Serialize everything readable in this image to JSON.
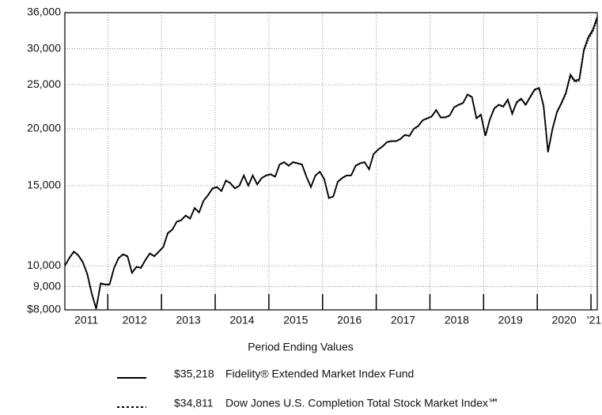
{
  "chart_data": {
    "type": "line",
    "log_y": true,
    "grid": true,
    "ylim": [
      8000,
      36000
    ],
    "yticks": [
      {
        "value": 8000,
        "label": "$8,000"
      },
      {
        "value": 9000,
        "label": "9,000"
      },
      {
        "value": 10000,
        "label": "10,000"
      },
      {
        "value": 15000,
        "label": "15,000"
      },
      {
        "value": 20000,
        "label": "20,000"
      },
      {
        "value": 25000,
        "label": "25,000"
      },
      {
        "value": 30000,
        "label": "30,000"
      },
      {
        "value": 36000,
        "label": "36,000"
      }
    ],
    "xlim": [
      2011.2,
      2021.117
    ],
    "xticks": [
      2012,
      2013,
      2014,
      2015,
      2016,
      2017,
      2018,
      2019,
      2020,
      2021
    ],
    "year_labels": [
      "2011",
      "2012",
      "2013",
      "2014",
      "2015",
      "2016",
      "2017",
      "2018",
      "2019",
      "2020",
      "'21"
    ],
    "legend_title": "Period Ending Values",
    "x": [
      2011.2,
      2011.283,
      2011.367,
      2011.45,
      2011.533,
      2011.617,
      2011.7,
      2011.783,
      2011.867,
      2011.95,
      2012.033,
      2012.117,
      2012.2,
      2012.283,
      2012.367,
      2012.45,
      2012.533,
      2012.617,
      2012.7,
      2012.783,
      2012.867,
      2012.95,
      2013.033,
      2013.117,
      2013.2,
      2013.283,
      2013.367,
      2013.45,
      2013.533,
      2013.617,
      2013.7,
      2013.783,
      2013.867,
      2013.95,
      2014.033,
      2014.117,
      2014.2,
      2014.283,
      2014.367,
      2014.45,
      2014.533,
      2014.617,
      2014.7,
      2014.783,
      2014.867,
      2014.95,
      2015.033,
      2015.117,
      2015.2,
      2015.283,
      2015.367,
      2015.45,
      2015.533,
      2015.617,
      2015.7,
      2015.783,
      2015.867,
      2015.95,
      2016.033,
      2016.117,
      2016.2,
      2016.283,
      2016.367,
      2016.45,
      2016.533,
      2016.617,
      2016.7,
      2016.783,
      2016.867,
      2016.95,
      2017.033,
      2017.117,
      2017.2,
      2017.283,
      2017.367,
      2017.45,
      2017.533,
      2017.617,
      2017.7,
      2017.783,
      2017.867,
      2017.95,
      2018.033,
      2018.117,
      2018.2,
      2018.283,
      2018.367,
      2018.45,
      2018.533,
      2018.617,
      2018.7,
      2018.783,
      2018.867,
      2018.95,
      2019.033,
      2019.117,
      2019.2,
      2019.283,
      2019.367,
      2019.45,
      2019.533,
      2019.617,
      2019.7,
      2019.783,
      2019.867,
      2019.95,
      2020.033,
      2020.117,
      2020.2,
      2020.283,
      2020.367,
      2020.45,
      2020.533,
      2020.617,
      2020.7,
      2020.783,
      2020.867,
      2020.95,
      2021.033,
      2021.117
    ],
    "series": [
      {
        "name": "Fidelity® Extended Market Index Fund",
        "end_label": "$35,218",
        "color": "#000000",
        "line_style": "solid",
        "values": [
          10000,
          10400,
          10750,
          10550,
          10200,
          9600,
          8700,
          8050,
          9150,
          9100,
          9100,
          9900,
          10400,
          10600,
          10500,
          9650,
          9950,
          9900,
          10300,
          10650,
          10500,
          10750,
          11000,
          11800,
          12000,
          12500,
          12600,
          12900,
          12700,
          13400,
          13100,
          13900,
          14300,
          14800,
          14900,
          14600,
          15400,
          15200,
          14800,
          15000,
          15800,
          15000,
          15800,
          15100,
          15600,
          15800,
          15900,
          15700,
          16700,
          16900,
          16600,
          16900,
          16800,
          16700,
          15700,
          14900,
          15800,
          16100,
          15500,
          14100,
          14200,
          15300,
          15600,
          15800,
          15800,
          16600,
          16800,
          16900,
          16300,
          17600,
          18000,
          18300,
          18700,
          18800,
          18800,
          19000,
          19400,
          19300,
          20000,
          20300,
          20900,
          21100,
          21300,
          22000,
          21200,
          21200,
          21400,
          22300,
          22600,
          22800,
          23800,
          23500,
          21100,
          21500,
          19300,
          21000,
          22200,
          22600,
          22400,
          23200,
          21600,
          22900,
          23300,
          22600,
          23500,
          24400,
          24600,
          22500,
          17800,
          20000,
          21800,
          22800,
          24000,
          26300,
          25500,
          25700,
          29800,
          31800,
          33000,
          35218
        ]
      },
      {
        "name": "Dow Jones U.S. Completion Total Stock Market Index℠",
        "end_label": "$34,811",
        "color": "#000000",
        "line_style": "dotted",
        "values": [
          10000,
          10380,
          10720,
          10520,
          10170,
          9570,
          8680,
          8040,
          9120,
          9080,
          9090,
          9880,
          10370,
          10580,
          10470,
          9630,
          9930,
          9880,
          10280,
          10620,
          10480,
          10730,
          10980,
          11770,
          11980,
          12470,
          12580,
          12870,
          12680,
          13370,
          13080,
          13870,
          14280,
          14760,
          14870,
          14580,
          15370,
          15170,
          14780,
          14980,
          15770,
          14980,
          15770,
          15080,
          15570,
          15770,
          15870,
          15680,
          16670,
          16870,
          16570,
          16870,
          16770,
          16670,
          15680,
          14880,
          15770,
          16070,
          15470,
          14080,
          14180,
          15270,
          15570,
          15770,
          15770,
          16570,
          16770,
          16870,
          16280,
          17570,
          17970,
          18270,
          18670,
          18760,
          18760,
          18960,
          19360,
          19260,
          19960,
          20260,
          20860,
          21050,
          21250,
          21950,
          21150,
          21150,
          21350,
          22250,
          22540,
          22740,
          23740,
          23430,
          21050,
          21440,
          19250,
          20940,
          22130,
          22530,
          22330,
          23120,
          21540,
          22820,
          23220,
          22520,
          23410,
          24310,
          24500,
          22410,
          17740,
          19920,
          21700,
          22690,
          23870,
          26140,
          25330,
          25500,
          29560,
          31500,
          32650,
          34811
        ]
      }
    ]
  }
}
